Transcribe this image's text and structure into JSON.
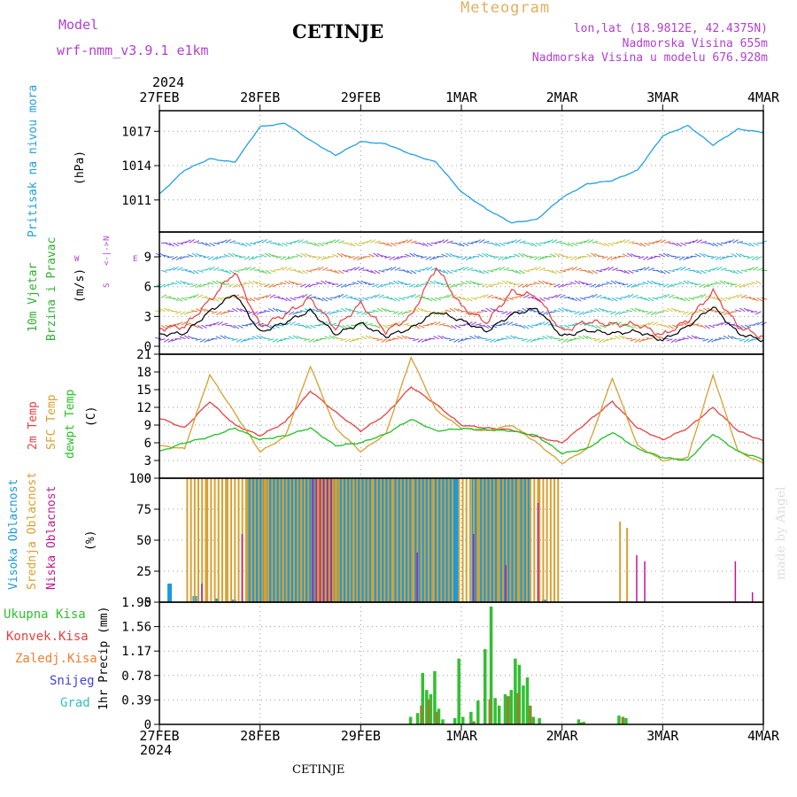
{
  "header": {
    "model_label": "Model",
    "model_name": "wrf-nmm_v3.9.1 e1km",
    "title": "CETINJE",
    "meteogram": "Meteogram",
    "lonlat": "lon,lat (18.9812E, 42.4375N)",
    "elevation": "Nadmorska Visina 655m",
    "model_elevation": "Nadmorska Visina u modelu 676.928m",
    "year_top": "2024",
    "year_bottom": "2024",
    "footer_title": "CETINJE",
    "watermark": "made by Angel"
  },
  "colors": {
    "pressure": "#22a0e0",
    "purple": "#b040d0",
    "temp2m": "#e84040",
    "sfc": "#d8a030",
    "dewpt": "#22c022",
    "high_cloud": "#1a9ae0",
    "mid_cloud": "#d8a030",
    "low_cloud": "#c01890",
    "precip_total": "#30c030",
    "precip_conv": "#e84040",
    "precip_frozen": "#f08030",
    "snow": "#4040e0",
    "hail": "#30c0c0"
  },
  "time_axis": {
    "days": [
      "27FEB",
      "28FEB",
      "29FEB",
      "1MAR",
      "2MAR",
      "3MAR",
      "4MAR"
    ]
  },
  "chart_data": [
    {
      "id": "pressure",
      "type": "line",
      "ylabel_1": "Pritisak na nivou mora",
      "ylabel_2": "(hPa)",
      "yticks": [
        1011,
        1014,
        1017
      ],
      "ylim": [
        1008.2,
        1018.8
      ],
      "x": [
        0,
        0.25,
        0.5,
        0.75,
        1,
        1.25,
        1.5,
        1.75,
        2,
        2.25,
        2.5,
        2.75,
        3,
        3.25,
        3.5,
        3.75,
        4,
        4.25,
        4.5,
        4.75,
        5,
        5.25,
        5.5,
        5.75,
        6
      ],
      "values": [
        1011.5,
        1013.6,
        1014.6,
        1014.3,
        1017.4,
        1017.7,
        1016.2,
        1014.9,
        1016.1,
        1015.9,
        1015.0,
        1014.3,
        1011.7,
        1010.2,
        1009.0,
        1009.3,
        1011.2,
        1012.4,
        1012.7,
        1013.6,
        1016.6,
        1017.5,
        1015.8,
        1017.2,
        1016.9
      ],
      "series": [
        {
          "name": "",
          "color_key": "pressure"
        }
      ]
    },
    {
      "id": "wind",
      "type": "line",
      "ylabel_1": "10m Vjetar",
      "ylabel_2": "Brzina i Pravac",
      "ylabel_3": "(m/s)",
      "compass_n": "N",
      "compass_s": "S",
      "compass_w": "W",
      "compass_e": "E",
      "compass_mid": "<-|->",
      "yticks": [
        0,
        3,
        6,
        9
      ],
      "ylim": [
        -0.8,
        11.5
      ],
      "x": [
        0,
        0.25,
        0.5,
        0.75,
        1,
        1.25,
        1.5,
        1.75,
        2,
        2.25,
        2.5,
        2.75,
        3,
        3.25,
        3.5,
        3.75,
        4,
        4.25,
        4.5,
        4.75,
        5,
        5.25,
        5.5,
        5.75,
        6
      ],
      "series": [
        {
          "name": "",
          "color_key": "",
          "values": [
            1.2,
            1.3,
            3.5,
            5.3,
            1.4,
            2.4,
            3.6,
            1.2,
            2.3,
            1.0,
            1.8,
            3.5,
            2.6,
            1.5,
            3.2,
            3.8,
            1.0,
            1.6,
            1.3,
            1.5,
            0.6,
            2.0,
            4.0,
            1.3,
            0.6
          ]
        },
        {
          "name": "",
          "color_key": "temp2m",
          "values": [
            1.8,
            2.0,
            4.6,
            7.5,
            2.0,
            3.2,
            4.8,
            1.8,
            4.3,
            1.5,
            3.0,
            8.0,
            4.0,
            2.4,
            5.5,
            5.0,
            1.5,
            2.5,
            2.2,
            2.2,
            1.1,
            2.6,
            5.5,
            2.0,
            0.9
          ]
        }
      ]
    },
    {
      "id": "temperature",
      "type": "line",
      "ylabel_1": "2m Temp",
      "ylabel_2": "SFC Temp",
      "ylabel_3": "dewpt Temp",
      "ylabel_4": "(C)",
      "yticks": [
        0,
        3,
        6,
        9,
        12,
        15,
        18,
        21
      ],
      "ylim": [
        0,
        21
      ],
      "x": [
        0,
        0.25,
        0.5,
        0.75,
        1,
        1.25,
        1.5,
        1.75,
        2,
        2.25,
        2.5,
        2.75,
        3,
        3.25,
        3.5,
        3.75,
        4,
        4.25,
        4.5,
        4.75,
        5,
        5.25,
        5.5,
        5.75,
        6
      ],
      "series": [
        {
          "name": "2m Temp",
          "color_key": "temp2m",
          "values": [
            10.2,
            8.5,
            13.0,
            9.0,
            7.2,
            9.5,
            14.8,
            11.2,
            8.0,
            10.8,
            15.5,
            12.5,
            9.0,
            8.5,
            8.2,
            7.0,
            6.0,
            9.5,
            13.0,
            8.5,
            6.5,
            8.5,
            12.0,
            8.0,
            6.3
          ]
        },
        {
          "name": "SFC Temp",
          "color_key": "sfc",
          "values": [
            5.5,
            5.0,
            17.5,
            11.0,
            4.5,
            7.0,
            19.0,
            8.5,
            4.5,
            7.5,
            20.5,
            11.5,
            8.5,
            8.0,
            9.0,
            6.0,
            2.5,
            5.0,
            17.0,
            5.5,
            3.0,
            3.5,
            17.5,
            4.5,
            2.5
          ]
        },
        {
          "name": "dewpt Temp",
          "color_key": "dewpt",
          "values": [
            4.5,
            6.0,
            7.0,
            8.5,
            6.5,
            7.2,
            8.5,
            5.5,
            6.0,
            7.5,
            10.0,
            8.0,
            8.4,
            8.2,
            8.0,
            7.2,
            4.2,
            5.0,
            7.8,
            5.0,
            3.5,
            3.0,
            7.5,
            4.5,
            3.2
          ]
        }
      ]
    },
    {
      "id": "cloud",
      "type": "bar",
      "ylabel_1": "Visoka Oblacnost",
      "ylabel_2": "Srednja Oblacnost",
      "ylabel_3": "Niska Oblacnost",
      "ylabel_4": "(%)",
      "yticks": [
        0,
        25,
        50,
        75,
        100
      ],
      "ylim": [
        0,
        100
      ],
      "series": [
        {
          "name": "Visoka Oblacnost",
          "color_key": "high_cloud",
          "x": [
            0.08,
            0.33,
            0.55,
            0.72,
            0.88,
            1.05,
            1.22,
            1.4,
            1.58,
            1.75,
            1.92,
            2.08,
            2.25,
            2.42,
            2.58,
            2.75,
            3.1,
            3.28,
            3.45,
            3.62,
            3.8
          ],
          "values": [
            15,
            5,
            3,
            2,
            100,
            100,
            100,
            100,
            100,
            100,
            100,
            100,
            100,
            100,
            100,
            100,
            100,
            100,
            100,
            3,
            2
          ]
        },
        {
          "name": "Srednja Oblacnost",
          "color_key": "mid_cloud",
          "x": [
            0.25,
            0.45,
            0.65,
            0.85,
            1.02,
            1.2,
            1.38,
            1.55,
            1.72,
            1.9,
            2.1,
            2.3,
            2.5,
            2.7,
            2.95,
            3.15,
            3.35,
            3.55,
            3.75,
            4.55,
            4.62
          ],
          "values": [
            100,
            100,
            100,
            100,
            100,
            100,
            100,
            100,
            100,
            100,
            100,
            100,
            100,
            100,
            100,
            100,
            100,
            100,
            100,
            65,
            60
          ]
        },
        {
          "name": "Niska Oblacnost",
          "color_key": "low_cloud",
          "x": [
            0.38,
            0.78,
            1.48,
            2.52,
            3.08,
            3.4,
            3.72,
            4.7,
            4.78,
            5.68,
            5.85,
            6.0
          ],
          "values": [
            15,
            55,
            100,
            40,
            55,
            30,
            80,
            38,
            33,
            33,
            8,
            10
          ]
        }
      ]
    },
    {
      "id": "precip",
      "type": "bar",
      "ylabel_1": "1hr Precip (mm)",
      "legend": [
        "Ukupna Kisa",
        "Konvek.Kisa",
        "Zaledj.Kisa",
        "Snijeg",
        "Grad"
      ],
      "yticks": [
        0,
        0.39,
        0.78,
        1.17,
        1.56,
        1.95
      ],
      "ylim": [
        0,
        1.95
      ],
      "series": [
        {
          "name": "Ukupna Kisa",
          "color_key": "precip_total",
          "x": [
            2.48,
            2.55,
            2.6,
            2.64,
            2.68,
            2.72,
            2.76,
            2.8,
            2.92,
            2.96,
            3.0,
            3.08,
            3.15,
            3.22,
            3.28,
            3.32,
            3.36,
            3.42,
            3.48,
            3.52,
            3.56,
            3.6,
            3.64,
            3.7,
            3.76,
            4.15,
            4.2,
            4.55,
            4.62
          ],
          "values": [
            0.12,
            0.18,
            0.82,
            0.55,
            0.48,
            0.85,
            0.25,
            0.08,
            0.1,
            1.05,
            0.12,
            0.2,
            0.38,
            1.2,
            1.88,
            0.42,
            0.3,
            0.48,
            0.55,
            1.05,
            0.95,
            0.62,
            0.75,
            0.12,
            0.1,
            0.08,
            0.04,
            0.14,
            0.1
          ]
        },
        {
          "name": "Konvek.Kisa",
          "color_key": "precip_conv",
          "x": [
            2.58,
            2.65,
            2.73,
            3.1,
            3.26,
            3.44,
            3.54,
            3.66,
            4.17,
            4.58
          ],
          "values": [
            0.3,
            0.4,
            0.2,
            0.05,
            0.4,
            0.45,
            0.5,
            0.3,
            0.03,
            0.12
          ]
        }
      ]
    }
  ]
}
